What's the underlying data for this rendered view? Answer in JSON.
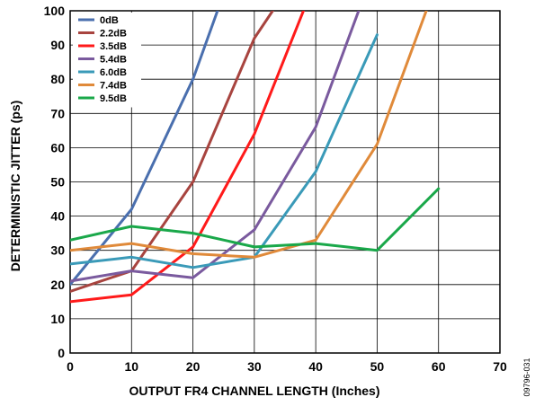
{
  "chart_data": {
    "type": "line",
    "xlabel": "OUTPUT FR4 CHANNEL LENGTH (Inches)",
    "ylabel": "DETERMINISTIC JITTER (ps)",
    "xlim": [
      0,
      70
    ],
    "ylim": [
      0,
      100
    ],
    "x_ticks": [
      "0",
      "10",
      "20",
      "30",
      "40",
      "50",
      "60",
      "70"
    ],
    "y_ticks": [
      "0",
      "10",
      "20",
      "30",
      "40",
      "50",
      "60",
      "70",
      "80",
      "90",
      "100"
    ],
    "grid": true,
    "legend_position": "top-left",
    "figure_id": "09796-031",
    "series": [
      {
        "name": "0dB",
        "color": "#4a6fae",
        "x": [
          0,
          10,
          20,
          24
        ],
        "y": [
          20,
          42,
          80,
          100
        ]
      },
      {
        "name": "2.2dB",
        "color": "#a8443f",
        "x": [
          0,
          10,
          20,
          30,
          33
        ],
        "y": [
          18,
          24,
          50,
          92,
          100
        ]
      },
      {
        "name": "3.5dB",
        "color": "#ff1a1a",
        "x": [
          0,
          10,
          20,
          30,
          38
        ],
        "y": [
          15,
          17,
          31,
          64,
          100
        ]
      },
      {
        "name": "5.4dB",
        "color": "#7a5a9e",
        "x": [
          0,
          10,
          20,
          30,
          40,
          47
        ],
        "y": [
          21,
          24,
          22,
          36,
          66,
          100
        ]
      },
      {
        "name": "6.0dB",
        "color": "#3a9ab8",
        "x": [
          0,
          10,
          20,
          30,
          40,
          50
        ],
        "y": [
          26,
          28,
          25,
          28,
          53,
          93
        ]
      },
      {
        "name": "7.4dB",
        "color": "#e08a3a",
        "x": [
          0,
          10,
          20,
          30,
          40,
          50,
          58
        ],
        "y": [
          30,
          32,
          29,
          28,
          33,
          61,
          100
        ]
      },
      {
        "name": "9.5dB",
        "color": "#1aa84a",
        "x": [
          0,
          10,
          20,
          30,
          40,
          50,
          60
        ],
        "y": [
          33,
          37,
          35,
          31,
          32,
          30,
          48
        ]
      }
    ]
  }
}
